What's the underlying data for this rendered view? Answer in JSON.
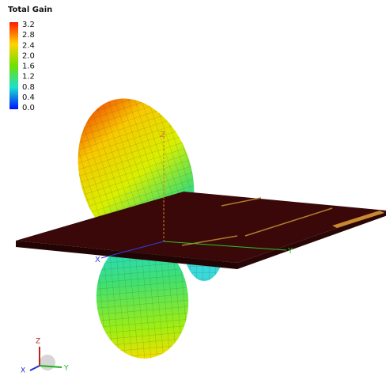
{
  "legend": {
    "title": "Total Gain",
    "ticks": [
      "3.2",
      "2.8",
      "2.4",
      "2.0",
      "1.6",
      "1.2",
      "0.8",
      "0.4",
      "0.0"
    ]
  },
  "axes": {
    "x": "X",
    "y": "Y",
    "z": "Z"
  },
  "triad": {
    "z": "Z",
    "x": "X",
    "y": "Y"
  }
}
